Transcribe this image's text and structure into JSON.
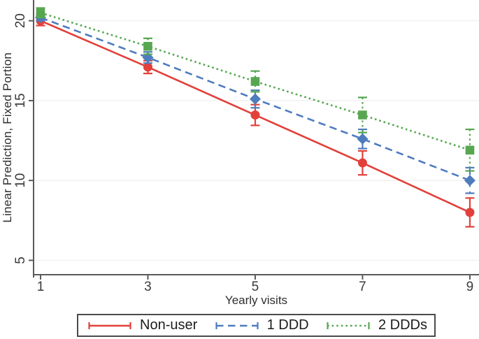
{
  "figure": {
    "bg": "#ffffff",
    "axis_color": "#5a5a5a",
    "grid_color": "#f0f1f1",
    "tick_text_color": "#3a3a3a",
    "label_text_color": "#2f2f2f"
  },
  "chart_data": {
    "type": "line",
    "title": "",
    "xlabel": "Yearly visits",
    "ylabel": "Linear Prediction, Fixed Portion",
    "x": [
      1,
      3,
      5,
      7,
      9
    ],
    "xticks": [
      1,
      3,
      5,
      7,
      9
    ],
    "yticks": [
      5,
      10,
      15,
      20
    ],
    "xlim": [
      0.87,
      9.17
    ],
    "ylim": [
      4.1,
      21.3
    ],
    "grid": "horizontal",
    "legend_position": "bottom",
    "series": [
      {
        "name": "Non-user",
        "color": "#e2403a",
        "line_style": "solid",
        "marker": "circle",
        "values": [
          20.0,
          17.1,
          14.1,
          11.1,
          8.0
        ],
        "ci_half_width": [
          0.3,
          0.4,
          0.65,
          0.75,
          0.9
        ]
      },
      {
        "name": "1 DDD",
        "color": "#4e7cbe",
        "line_style": "dashed",
        "marker": "diamond",
        "values": [
          20.2,
          17.7,
          15.1,
          12.6,
          10.0
        ],
        "ci_half_width": [
          0.2,
          0.35,
          0.55,
          0.6,
          0.8
        ]
      },
      {
        "name": "2 DDDs",
        "color": "#57a751",
        "line_style": "dotted",
        "marker": "square",
        "values": [
          20.5,
          18.4,
          16.2,
          14.1,
          11.9
        ],
        "ci_half_width": [
          0.3,
          0.5,
          0.65,
          1.1,
          1.3
        ]
      }
    ]
  }
}
